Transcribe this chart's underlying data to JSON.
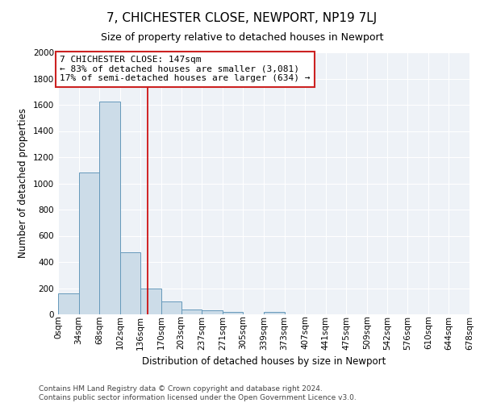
{
  "title": "7, CHICHESTER CLOSE, NEWPORT, NP19 7LJ",
  "subtitle": "Size of property relative to detached houses in Newport",
  "xlabel": "Distribution of detached houses by size in Newport",
  "ylabel": "Number of detached properties",
  "footnote1": "Contains HM Land Registry data © Crown copyright and database right 2024.",
  "footnote2": "Contains public sector information licensed under the Open Government Licence v3.0.",
  "bin_labels": [
    "0sqm",
    "34sqm",
    "68sqm",
    "102sqm",
    "136sqm",
    "170sqm",
    "203sqm",
    "237sqm",
    "271sqm",
    "305sqm",
    "339sqm",
    "373sqm",
    "407sqm",
    "441sqm",
    "475sqm",
    "509sqm",
    "542sqm",
    "576sqm",
    "610sqm",
    "644sqm",
    "678sqm"
  ],
  "bin_edges": [
    0,
    34,
    68,
    102,
    136,
    170,
    203,
    237,
    271,
    305,
    339,
    373,
    407,
    441,
    475,
    509,
    542,
    576,
    610,
    644,
    678
  ],
  "counts": [
    160,
    1085,
    1625,
    475,
    200,
    100,
    40,
    28,
    18,
    0,
    18,
    0,
    0,
    0,
    0,
    0,
    0,
    0,
    0,
    0
  ],
  "bar_color": "#ccdce8",
  "bar_edge_color": "#6699bb",
  "property_size": 147,
  "red_line_color": "#cc0000",
  "annotation_line1": "7 CHICHESTER CLOSE: 147sqm",
  "annotation_line2": "← 83% of detached houses are smaller (3,081)",
  "annotation_line3": "17% of semi-detached houses are larger (634) →",
  "annotation_box_facecolor": "#ffffff",
  "annotation_box_edgecolor": "#cc2222",
  "bg_color": "#eef2f7",
  "ylim": [
    0,
    2000
  ],
  "yticks": [
    0,
    200,
    400,
    600,
    800,
    1000,
    1200,
    1400,
    1600,
    1800,
    2000
  ],
  "title_fontsize": 11,
  "subtitle_fontsize": 9,
  "annotation_fontsize": 8,
  "xlabel_fontsize": 8.5,
  "ylabel_fontsize": 8.5,
  "tick_fontsize": 7.5,
  "footnote_fontsize": 6.5
}
